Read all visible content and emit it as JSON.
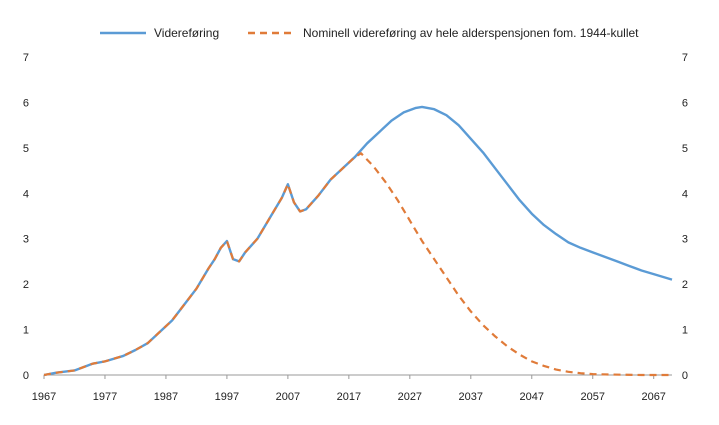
{
  "chart_data": {
    "type": "line",
    "title": "",
    "xlabel": "",
    "ylabel": "",
    "xlim": [
      1967,
      2070
    ],
    "ylim": [
      0,
      7
    ],
    "grid": false,
    "legend_position": "top",
    "x_ticks": [
      "1967",
      "1977",
      "1987",
      "1997",
      "2007",
      "2017",
      "2027",
      "2037",
      "2047",
      "2057",
      "2067"
    ],
    "y_ticks": [
      "0",
      "1",
      "2",
      "3",
      "4",
      "5",
      "6",
      "7"
    ],
    "series": [
      {
        "name": "Videreføring",
        "color": "#5b9bd5",
        "style": "solid",
        "points": [
          [
            1967,
            0.0
          ],
          [
            1969,
            0.05
          ],
          [
            1972,
            0.1
          ],
          [
            1975,
            0.25
          ],
          [
            1977,
            0.3
          ],
          [
            1980,
            0.42
          ],
          [
            1982,
            0.55
          ],
          [
            1984,
            0.7
          ],
          [
            1986,
            0.95
          ],
          [
            1988,
            1.2
          ],
          [
            1990,
            1.55
          ],
          [
            1992,
            1.9
          ],
          [
            1994,
            2.35
          ],
          [
            1995,
            2.55
          ],
          [
            1996,
            2.8
          ],
          [
            1997,
            2.95
          ],
          [
            1998,
            2.55
          ],
          [
            1999,
            2.5
          ],
          [
            2000,
            2.7
          ],
          [
            2002,
            3.0
          ],
          [
            2004,
            3.45
          ],
          [
            2006,
            3.9
          ],
          [
            2007,
            4.2
          ],
          [
            2008,
            3.8
          ],
          [
            2009,
            3.6
          ],
          [
            2010,
            3.65
          ],
          [
            2012,
            3.95
          ],
          [
            2014,
            4.3
          ],
          [
            2016,
            4.55
          ],
          [
            2018,
            4.8
          ],
          [
            2020,
            5.1
          ],
          [
            2022,
            5.35
          ],
          [
            2024,
            5.6
          ],
          [
            2026,
            5.78
          ],
          [
            2028,
            5.88
          ],
          [
            2029,
            5.9
          ],
          [
            2031,
            5.85
          ],
          [
            2033,
            5.72
          ],
          [
            2035,
            5.5
          ],
          [
            2037,
            5.2
          ],
          [
            2039,
            4.9
          ],
          [
            2041,
            4.55
          ],
          [
            2043,
            4.2
          ],
          [
            2045,
            3.85
          ],
          [
            2047,
            3.55
          ],
          [
            2049,
            3.3
          ],
          [
            2051,
            3.1
          ],
          [
            2053,
            2.92
          ],
          [
            2055,
            2.8
          ],
          [
            2057,
            2.7
          ],
          [
            2059,
            2.6
          ],
          [
            2061,
            2.5
          ],
          [
            2063,
            2.4
          ],
          [
            2065,
            2.3
          ],
          [
            2067,
            2.22
          ],
          [
            2070,
            2.1
          ]
        ]
      },
      {
        "name": "Nominell videreføring av hele alderspensjonen fom. 1944-kullet",
        "color": "#e07b39",
        "style": "dashed",
        "points": [
          [
            1967,
            0.0
          ],
          [
            1969,
            0.05
          ],
          [
            1972,
            0.1
          ],
          [
            1975,
            0.25
          ],
          [
            1977,
            0.3
          ],
          [
            1980,
            0.42
          ],
          [
            1982,
            0.55
          ],
          [
            1984,
            0.7
          ],
          [
            1986,
            0.95
          ],
          [
            1988,
            1.2
          ],
          [
            1990,
            1.55
          ],
          [
            1992,
            1.9
          ],
          [
            1994,
            2.35
          ],
          [
            1995,
            2.55
          ],
          [
            1996,
            2.8
          ],
          [
            1997,
            2.95
          ],
          [
            1998,
            2.55
          ],
          [
            1999,
            2.5
          ],
          [
            2000,
            2.7
          ],
          [
            2002,
            3.0
          ],
          [
            2004,
            3.45
          ],
          [
            2006,
            3.9
          ],
          [
            2007,
            4.2
          ],
          [
            2008,
            3.8
          ],
          [
            2009,
            3.6
          ],
          [
            2010,
            3.65
          ],
          [
            2012,
            3.95
          ],
          [
            2014,
            4.3
          ],
          [
            2016,
            4.55
          ],
          [
            2018,
            4.8
          ],
          [
            2019,
            4.88
          ],
          [
            2021,
            4.6
          ],
          [
            2023,
            4.25
          ],
          [
            2025,
            3.85
          ],
          [
            2027,
            3.4
          ],
          [
            2029,
            2.95
          ],
          [
            2031,
            2.55
          ],
          [
            2033,
            2.15
          ],
          [
            2035,
            1.75
          ],
          [
            2037,
            1.4
          ],
          [
            2039,
            1.1
          ],
          [
            2041,
            0.85
          ],
          [
            2043,
            0.63
          ],
          [
            2045,
            0.45
          ],
          [
            2047,
            0.3
          ],
          [
            2049,
            0.2
          ],
          [
            2051,
            0.12
          ],
          [
            2053,
            0.07
          ],
          [
            2055,
            0.04
          ],
          [
            2057,
            0.02
          ],
          [
            2060,
            0.01
          ],
          [
            2065,
            0.0
          ],
          [
            2070,
            0.0
          ]
        ]
      }
    ]
  }
}
